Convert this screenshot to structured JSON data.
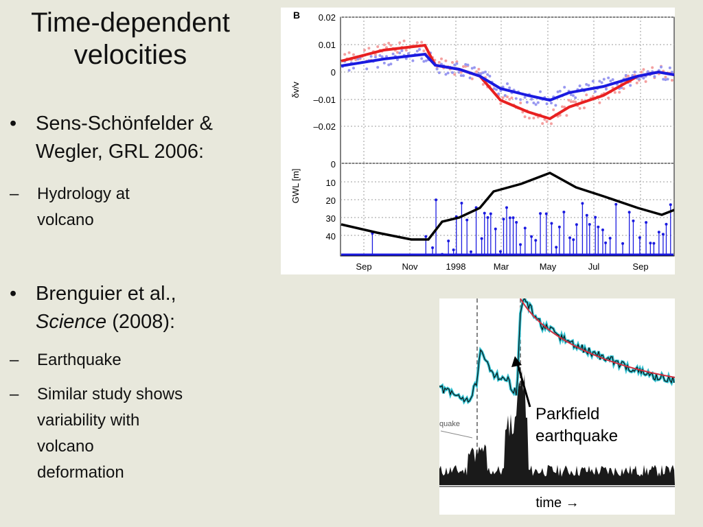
{
  "slide": {
    "title_line1": "Time-dependent",
    "title_line2": "velocities",
    "bullets": [
      {
        "marker": "•",
        "line1": "Sens-Schönfelder &",
        "line2": "Wegler, GRL 2006:"
      },
      {
        "marker": "•",
        "line1": "Brenguier et al.,",
        "line2_italic": "Science",
        "line2_rest": " (2008):"
      }
    ],
    "subbullets": [
      {
        "marker": "–",
        "lines": [
          "Hydrology at",
          "volcano"
        ]
      },
      {
        "marker": "–",
        "lines": [
          "Earthquake"
        ]
      },
      {
        "marker": "–",
        "lines": [
          "Similar study shows",
          "variability with",
          "volcano",
          "deformation"
        ]
      }
    ]
  },
  "figure_b": {
    "panel_letter": "B",
    "top_ylabel": "δv/v",
    "top_ticks": [
      "0.02",
      "0.01",
      "0",
      "–0.01",
      "–0.02"
    ],
    "bottom_ylabel": "GWL [m]",
    "bottom_ticks": [
      "0",
      "10",
      "20",
      "30",
      "40"
    ],
    "x_ticks": [
      "Sep",
      "Nov",
      "1998",
      "Mar",
      "May",
      "Jul",
      "Sep"
    ],
    "colors": {
      "red": "#e82020",
      "blue": "#1a1ae0",
      "black": "#000000",
      "light_red": "#f4a0a0",
      "light_blue": "#9898f0"
    }
  },
  "figure_parkfield": {
    "annotation_line1": "Parkfield",
    "annotation_line2": "earthquake",
    "left_clip_label": "quake",
    "time_label": "time →",
    "colors": {
      "trace": "#0a0a0a",
      "cyan": "#30c0d0",
      "fit": "#d03040"
    }
  }
}
